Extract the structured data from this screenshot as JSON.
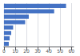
{
  "chart_data": {
    "type": "bar",
    "orientation": "horizontal",
    "values": [
      55.3,
      44.7,
      22.1,
      18.9,
      8.2,
      6.5,
      5.1,
      4.3
    ],
    "color": "#4472c4",
    "xlim": [
      0,
      62
    ],
    "xticks": [
      0,
      10,
      20,
      30,
      40,
      50,
      60
    ],
    "grid": true,
    "tick_labels": "x"
  }
}
